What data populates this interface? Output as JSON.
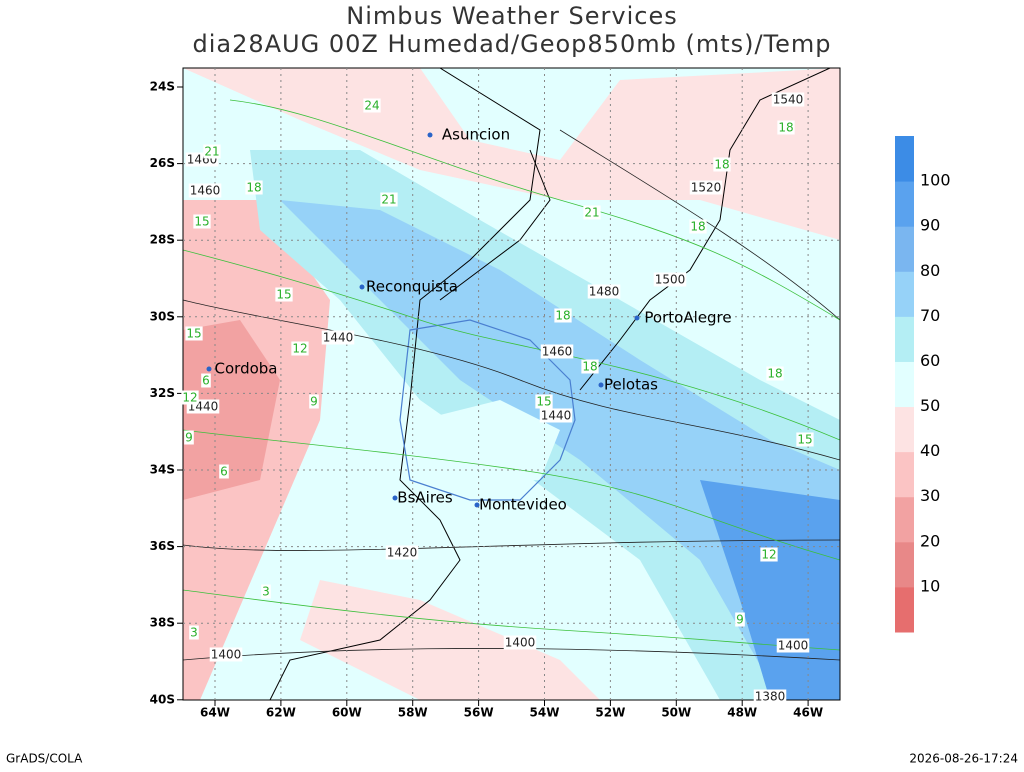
{
  "header": {
    "title": "Nimbus Weather Services",
    "subtitle": "dia28AUG 00Z Humedad/Geop850mb (mts)/Temp"
  },
  "map": {
    "lat_labels": [
      "24S",
      "26S",
      "28S",
      "30S",
      "32S",
      "34S",
      "36S",
      "38S",
      "40S"
    ],
    "lon_labels": [
      "64W",
      "62W",
      "60W",
      "58W",
      "56W",
      "54W",
      "52W",
      "50W",
      "48W",
      "46W"
    ],
    "cities": [
      "Asuncion",
      "Reconquista",
      "PortoAlegre",
      "Cordoba",
      "Pelotas",
      "BsAires",
      "Montevideo"
    ],
    "geopotential_labels": [
      "1540",
      "1520",
      "1500",
      "1480",
      "1460",
      "1440",
      "1440",
      "1440",
      "1460",
      "1460",
      "1420",
      "1400",
      "1400",
      "1400",
      "1380"
    ],
    "temperature_labels": [
      "24",
      "21",
      "21",
      "21",
      "18",
      "18",
      "18",
      "18",
      "18",
      "18",
      "18",
      "15",
      "15",
      "15",
      "15",
      "15",
      "12",
      "12",
      "12",
      "9",
      "9",
      "9",
      "6",
      "6",
      "3",
      "3"
    ]
  },
  "colorbar": {
    "levels": [
      10,
      20,
      30,
      40,
      50,
      60,
      70,
      80,
      90,
      100
    ],
    "colors": [
      "#e66e6e",
      "#e88888",
      "#f2a2a2",
      "#fbc4c4",
      "#fde3e3",
      "#e2ffff",
      "#b4eef4",
      "#96d2f8",
      "#7ab6f0",
      "#5aa2ee",
      "#3c8ce6"
    ]
  },
  "footer": {
    "left": "GrADS/COLA",
    "right": "2026-08-26-17:24"
  }
}
